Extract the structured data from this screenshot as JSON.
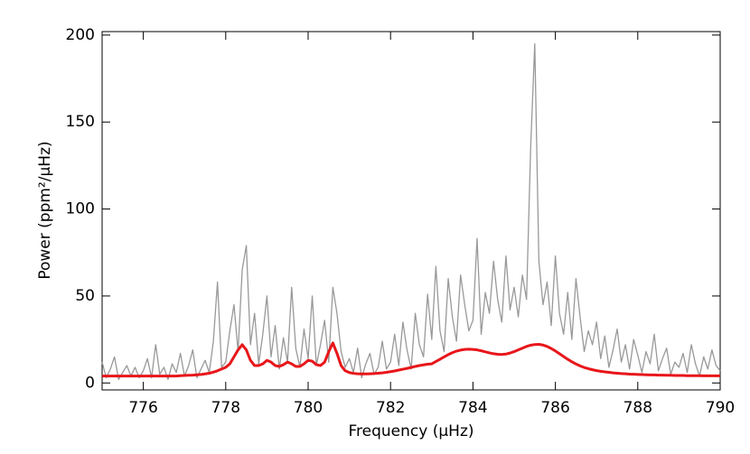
{
  "chart_data": {
    "type": "line",
    "x_label": "Frequency (μHz)",
    "y_label": "Power (ppm²/μHz)",
    "xlim": [
      775,
      790
    ],
    "ylim": [
      -4,
      202
    ],
    "xticks": [
      776,
      778,
      780,
      782,
      784,
      786,
      788,
      790
    ],
    "yticks": [
      0,
      50,
      100,
      150,
      200
    ],
    "x": [
      775.0,
      775.1,
      775.2,
      775.3,
      775.4,
      775.5,
      775.6,
      775.7,
      775.8,
      775.9,
      776.0,
      776.1,
      776.2,
      776.3,
      776.4,
      776.5,
      776.6,
      776.7,
      776.8,
      776.9,
      777.0,
      777.1,
      777.2,
      777.3,
      777.4,
      777.5,
      777.6,
      777.7,
      777.8,
      777.9,
      778.0,
      778.1,
      778.2,
      778.3,
      778.4,
      778.5,
      778.6,
      778.7,
      778.8,
      778.9,
      779.0,
      779.1,
      779.2,
      779.3,
      779.4,
      779.5,
      779.6,
      779.7,
      779.8,
      779.9,
      780.0,
      780.1,
      780.2,
      780.3,
      780.4,
      780.5,
      780.6,
      780.7,
      780.8,
      780.9,
      781.0,
      781.1,
      781.2,
      781.3,
      781.4,
      781.5,
      781.6,
      781.7,
      781.8,
      781.9,
      782.0,
      782.1,
      782.2,
      782.3,
      782.4,
      782.5,
      782.6,
      782.7,
      782.8,
      782.9,
      783.0,
      783.1,
      783.2,
      783.3,
      783.4,
      783.5,
      783.6,
      783.7,
      783.8,
      783.9,
      784.0,
      784.1,
      784.2,
      784.3,
      784.4,
      784.5,
      784.6,
      784.7,
      784.8,
      784.9,
      785.0,
      785.1,
      785.2,
      785.3,
      785.4,
      785.5,
      785.6,
      785.7,
      785.8,
      785.9,
      786.0,
      786.1,
      786.2,
      786.3,
      786.4,
      786.5,
      786.6,
      786.7,
      786.8,
      786.9,
      787.0,
      787.1,
      787.2,
      787.3,
      787.4,
      787.5,
      787.6,
      787.7,
      787.8,
      787.9,
      788.0,
      788.1,
      788.2,
      788.3,
      788.4,
      788.5,
      788.6,
      788.7,
      788.8,
      788.9,
      789.0,
      789.1,
      789.2,
      789.3,
      789.4,
      789.5,
      789.6,
      789.7,
      789.8,
      789.9,
      790.0
    ],
    "series": [
      {
        "color": "#999999",
        "values": [
          12,
          3,
          8,
          15,
          2,
          6,
          10,
          4,
          9,
          3,
          7,
          14,
          3,
          22,
          5,
          9,
          2,
          11,
          6,
          17,
          4,
          10,
          19,
          3,
          8,
          13,
          6,
          24,
          58,
          9,
          12,
          30,
          45,
          18,
          65,
          79,
          22,
          40,
          11,
          28,
          50,
          15,
          33,
          8,
          26,
          12,
          55,
          20,
          9,
          31,
          14,
          50,
          10,
          22,
          36,
          12,
          55,
          40,
          18,
          9,
          14,
          6,
          20,
          3,
          11,
          17,
          5,
          9,
          24,
          8,
          12,
          28,
          10,
          35,
          19,
          8,
          40,
          22,
          15,
          51,
          25,
          67,
          30,
          18,
          60,
          38,
          24,
          62,
          45,
          30,
          36,
          83,
          28,
          52,
          40,
          70,
          48,
          35,
          73,
          42,
          55,
          38,
          62,
          48,
          135,
          195,
          70,
          45,
          58,
          33,
          73,
          40,
          28,
          52,
          25,
          60,
          38,
          18,
          30,
          22,
          35,
          14,
          27,
          9,
          19,
          31,
          12,
          22,
          8,
          25,
          16,
          6,
          18,
          11,
          28,
          7,
          14,
          20,
          5,
          12,
          9,
          17,
          6,
          22,
          11,
          4,
          15,
          8,
          19,
          10,
          7
        ]
      },
      {
        "color": "#e8161a",
        "values": [
          4,
          4,
          4,
          4,
          4,
          4,
          4,
          4,
          4,
          4,
          4,
          4,
          4,
          4,
          4,
          4,
          4,
          4,
          4,
          4.2,
          4.3,
          4.4,
          4.5,
          4.7,
          4.9,
          5.2,
          5.6,
          6.2,
          7,
          8,
          9,
          11,
          15,
          19,
          22,
          19,
          13,
          10,
          10,
          11,
          13,
          12,
          10,
          9.5,
          10.5,
          12,
          11,
          9.5,
          9.5,
          11,
          13,
          12.5,
          10.5,
          10,
          12,
          18,
          23,
          17,
          10,
          7,
          6,
          5.5,
          5.3,
          5.2,
          5.2,
          5.3,
          5.4,
          5.6,
          5.8,
          6.1,
          6.5,
          6.9,
          7.4,
          7.9,
          8.4,
          8.9,
          9.5,
          10,
          10.4,
          10.8,
          11,
          12.3,
          13.6,
          15,
          16.3,
          17.4,
          18.3,
          18.9,
          19.3,
          19.4,
          19.3,
          19,
          18.5,
          17.9,
          17.3,
          16.8,
          16.5,
          16.4,
          16.6,
          17.2,
          18,
          19,
          20,
          21,
          21.7,
          22.1,
          22.2,
          21.8,
          21,
          19.8,
          18.4,
          16.8,
          15.2,
          13.6,
          12.2,
          10.9,
          9.8,
          8.9,
          8.2,
          7.6,
          7.1,
          6.7,
          6.4,
          6.1,
          5.8,
          5.6,
          5.4,
          5.3,
          5.1,
          5.0,
          4.9,
          4.8,
          4.7,
          4.6,
          4.6,
          4.5,
          4.5,
          4.4,
          4.4,
          4.3,
          4.3,
          4.3,
          4.2,
          4.2,
          4.2,
          4.2,
          4.1,
          4.1,
          4.1,
          4.1,
          4.1
        ]
      }
    ]
  }
}
